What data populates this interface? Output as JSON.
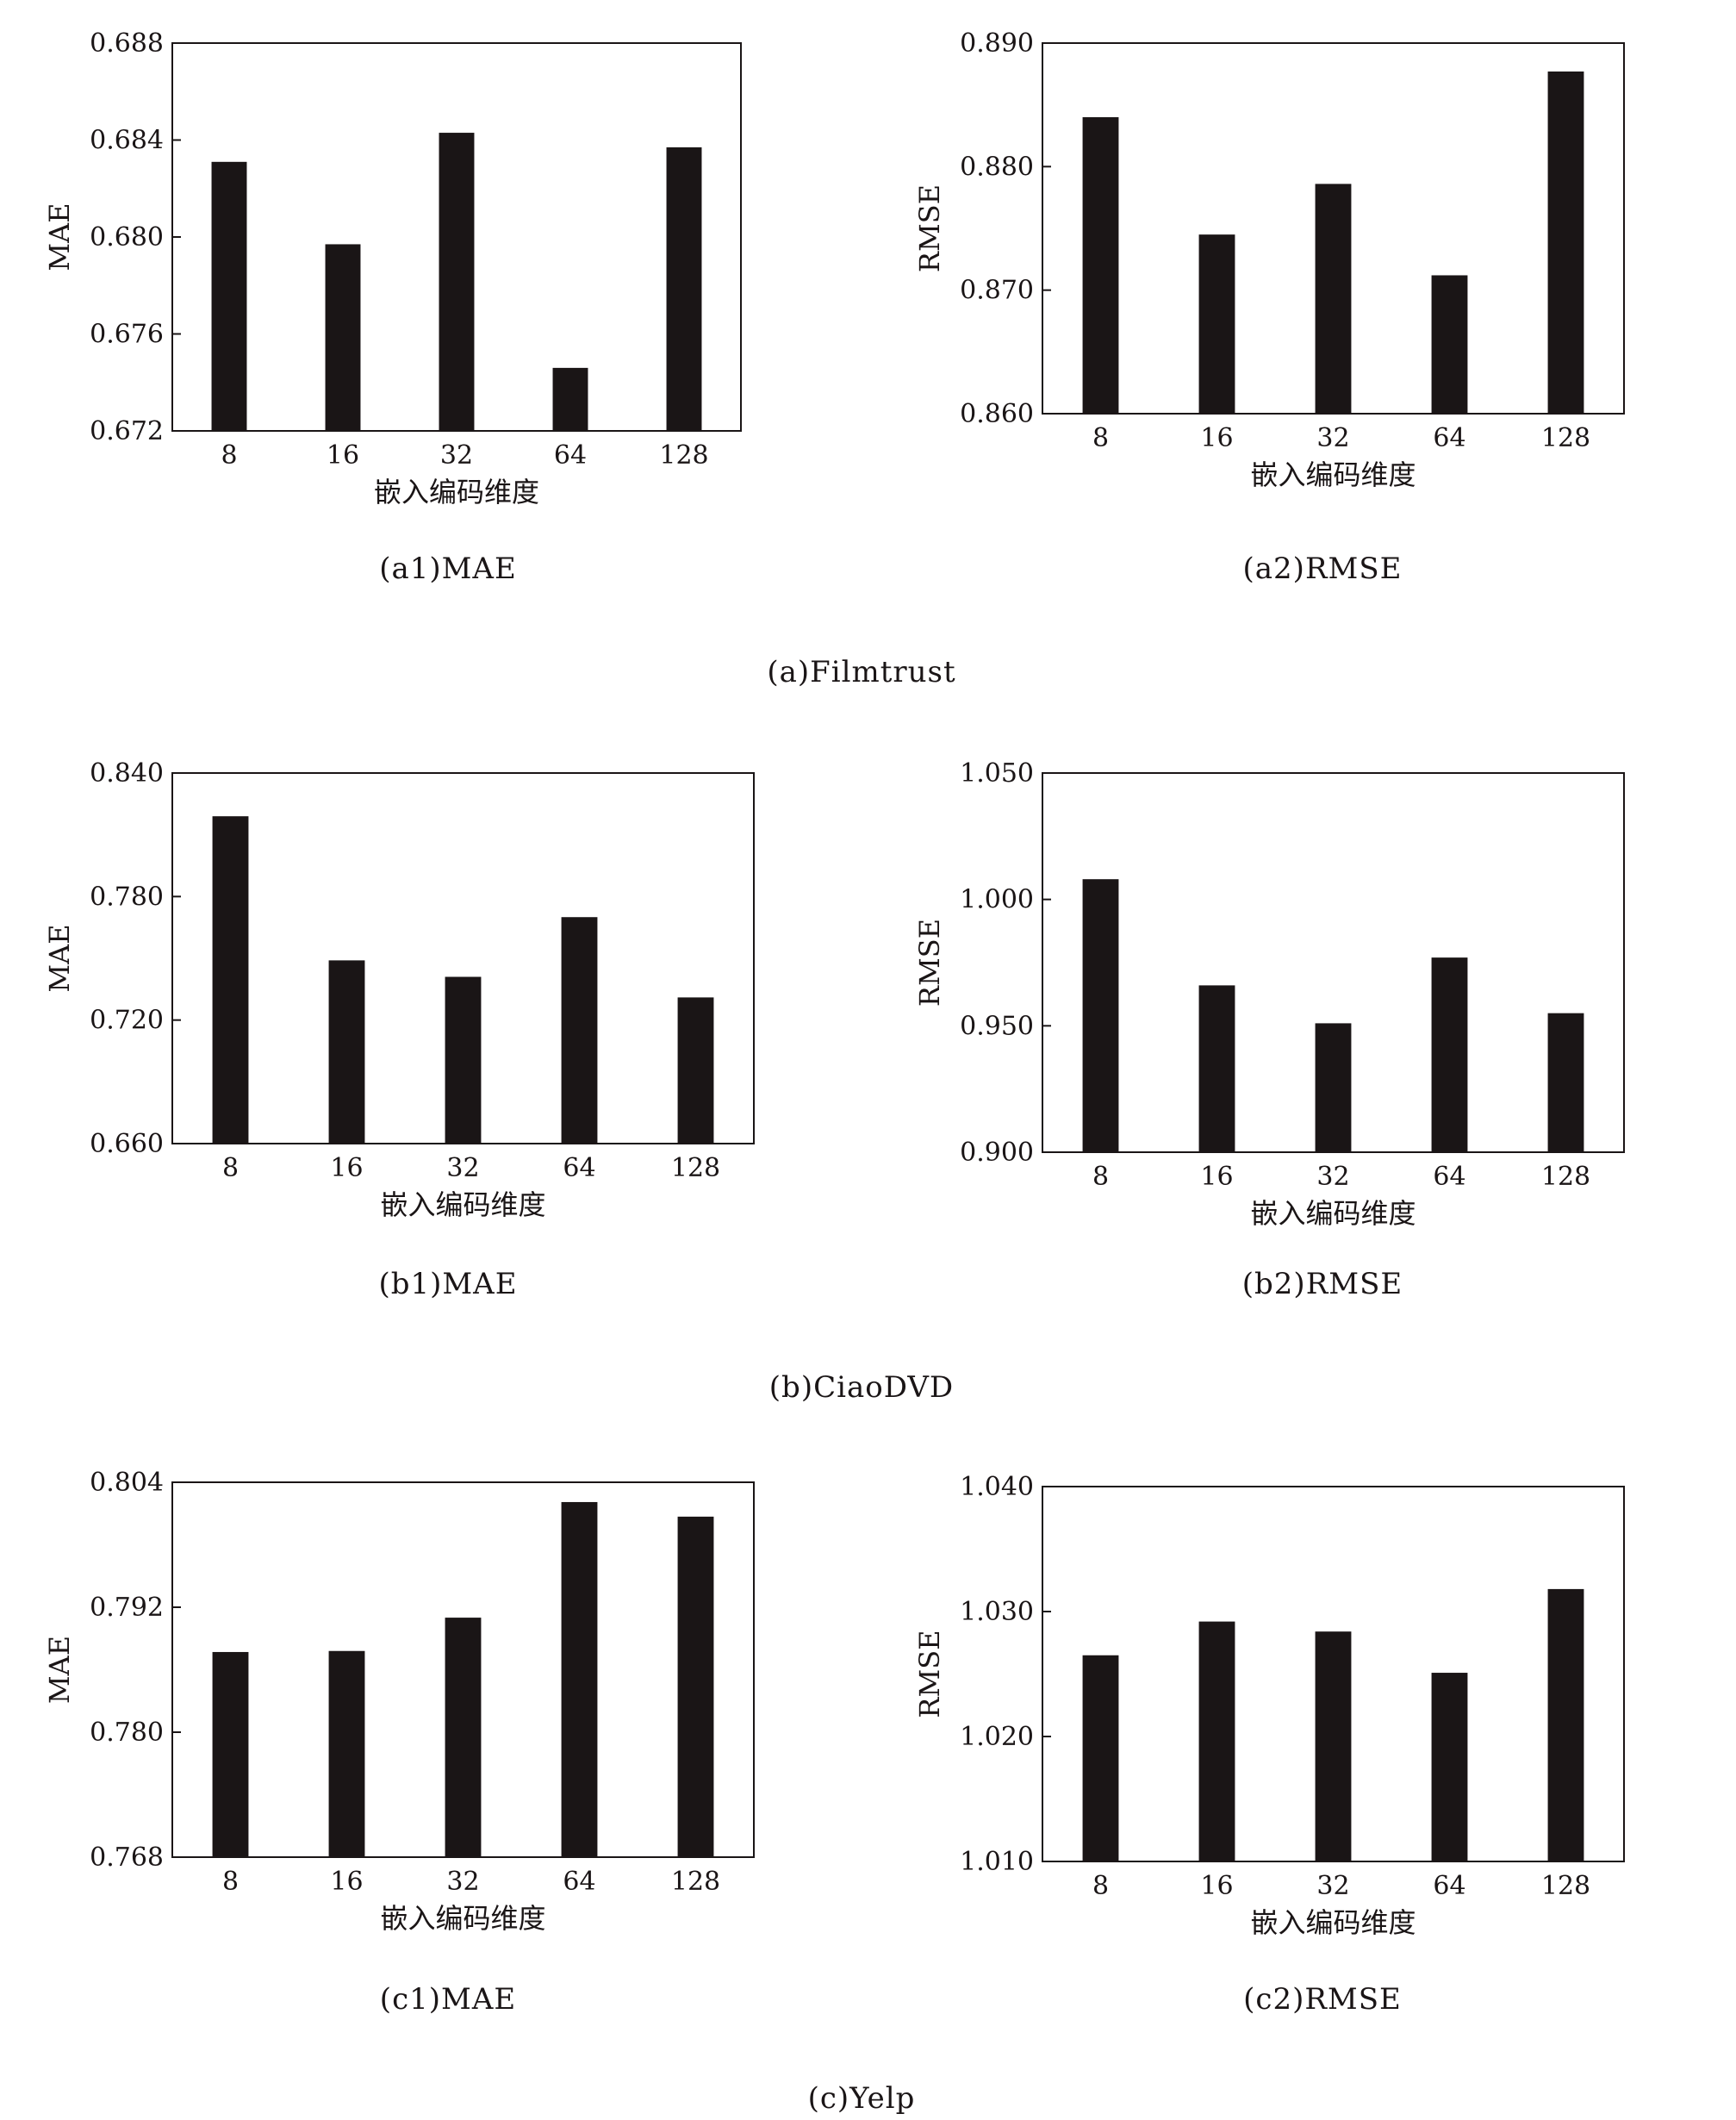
{
  "groups": [
    {
      "caption": "(a)Filmtrust"
    },
    {
      "caption": "(b)CiaoDVD"
    },
    {
      "caption": "(c)Yelp"
    }
  ],
  "charts": [
    {
      "caption": "(a1)MAE"
    },
    {
      "caption": "(a2)RMSE"
    },
    {
      "caption": "(b1)MAE"
    },
    {
      "caption": "(b2)RMSE"
    },
    {
      "caption": "(c1)MAE"
    },
    {
      "caption": "(c2)RMSE"
    }
  ],
  "style": {
    "bar_color": "#1a1516",
    "axis_color": "#1a1516"
  },
  "chart_data": [
    {
      "type": "bar",
      "categories": [
        "8",
        "16",
        "32",
        "64",
        "128"
      ],
      "values": [
        0.6831,
        0.6797,
        0.6843,
        0.6746,
        0.6837
      ],
      "xlabel": "嵌入编码维度",
      "ylabel": "MAE",
      "ylim": [
        0.672,
        0.688
      ],
      "yticks": [
        "0.672",
        "0.676",
        "0.680",
        "0.684",
        "0.688"
      ]
    },
    {
      "type": "bar",
      "categories": [
        "8",
        "16",
        "32",
        "64",
        "128"
      ],
      "values": [
        0.884,
        0.8745,
        0.8786,
        0.8712,
        0.8877
      ],
      "xlabel": "嵌入编码维度",
      "ylabel": "RMSE",
      "ylim": [
        0.86,
        0.89
      ],
      "yticks": [
        "0.860",
        "0.870",
        "0.880",
        "0.890"
      ]
    },
    {
      "type": "bar",
      "categories": [
        "8",
        "16",
        "32",
        "64",
        "128"
      ],
      "values": [
        0.819,
        0.749,
        0.741,
        0.77,
        0.731
      ],
      "xlabel": "嵌入编码维度",
      "ylabel": "MAE",
      "ylim": [
        0.66,
        0.84
      ],
      "yticks": [
        "0.660",
        "0.720",
        "0.780",
        "0.840"
      ]
    },
    {
      "type": "bar",
      "categories": [
        "8",
        "16",
        "32",
        "64",
        "128"
      ],
      "values": [
        1.008,
        0.966,
        0.951,
        0.977,
        0.955
      ],
      "xlabel": "嵌入编码维度",
      "ylabel": "RMSE",
      "ylim": [
        0.9,
        1.05
      ],
      "yticks": [
        "0.900",
        "0.950",
        "1.000",
        "1.050"
      ]
    },
    {
      "type": "bar",
      "categories": [
        "8",
        "16",
        "32",
        "64",
        "128"
      ],
      "values": [
        0.7877,
        0.7878,
        0.791,
        0.8021,
        0.8007
      ],
      "xlabel": "嵌入编码维度",
      "ylabel": "MAE",
      "ylim": [
        0.768,
        0.804
      ],
      "yticks": [
        "0.768",
        "0.780",
        "0.792",
        "0.804"
      ]
    },
    {
      "type": "bar",
      "categories": [
        "8",
        "16",
        "32",
        "64",
        "128"
      ],
      "values": [
        1.0265,
        1.0292,
        1.0284,
        1.0251,
        1.0318
      ],
      "xlabel": "嵌入编码维度",
      "ylabel": "RMSE",
      "ylim": [
        1.01,
        1.04
      ],
      "yticks": [
        "1.010",
        "1.020",
        "1.030",
        "1.040"
      ]
    }
  ]
}
